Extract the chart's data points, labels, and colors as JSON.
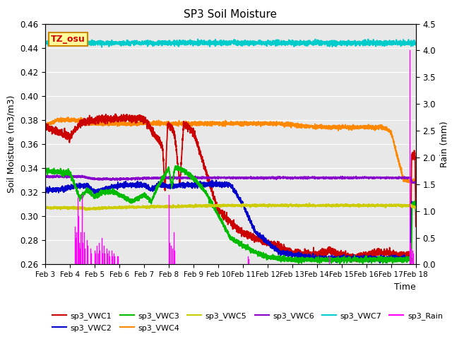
{
  "title": "SP3 Soil Moisture",
  "xlabel": "Time",
  "ylabel_left": "Soil Moisture (m3/m3)",
  "ylabel_right": "Rain (mm)",
  "ylim_left": [
    0.26,
    0.46
  ],
  "ylim_right": [
    0.0,
    4.5
  ],
  "plot_bg_color": "#e8e8e8",
  "label_box": "TZ_osu",
  "xtick_labels": [
    "Feb 3",
    "Feb 4",
    "Feb 5",
    "Feb 6",
    "Feb 7",
    "Feb 8",
    "Feb 9",
    "Feb 10",
    "Feb 11",
    "Feb 12",
    "Feb 13",
    "Feb 14",
    "Feb 15",
    "Feb 16",
    "Feb 17",
    "Feb 18"
  ],
  "yticks_left": [
    0.26,
    0.28,
    0.3,
    0.32,
    0.34,
    0.36,
    0.38,
    0.4,
    0.42,
    0.44,
    0.46
  ],
  "yticks_right": [
    0.0,
    0.5,
    1.0,
    1.5,
    2.0,
    2.5,
    3.0,
    3.5,
    4.0,
    4.5
  ],
  "colors": {
    "vwc1": "#cc0000",
    "vwc2": "#0000cc",
    "vwc3": "#00bb00",
    "vwc4": "#ff8800",
    "vwc5": "#cccc00",
    "vwc6": "#8800cc",
    "vwc7": "#00cccc",
    "rain": "#ff00ff"
  },
  "legend_row1": [
    "sp3_VWC1",
    "sp3_VWC2",
    "sp3_VWC3",
    "sp3_VWC4",
    "sp3_VWC5",
    "sp3_VWC6"
  ],
  "legend_row2": [
    "sp3_VWC7",
    "sp3_Rain"
  ]
}
